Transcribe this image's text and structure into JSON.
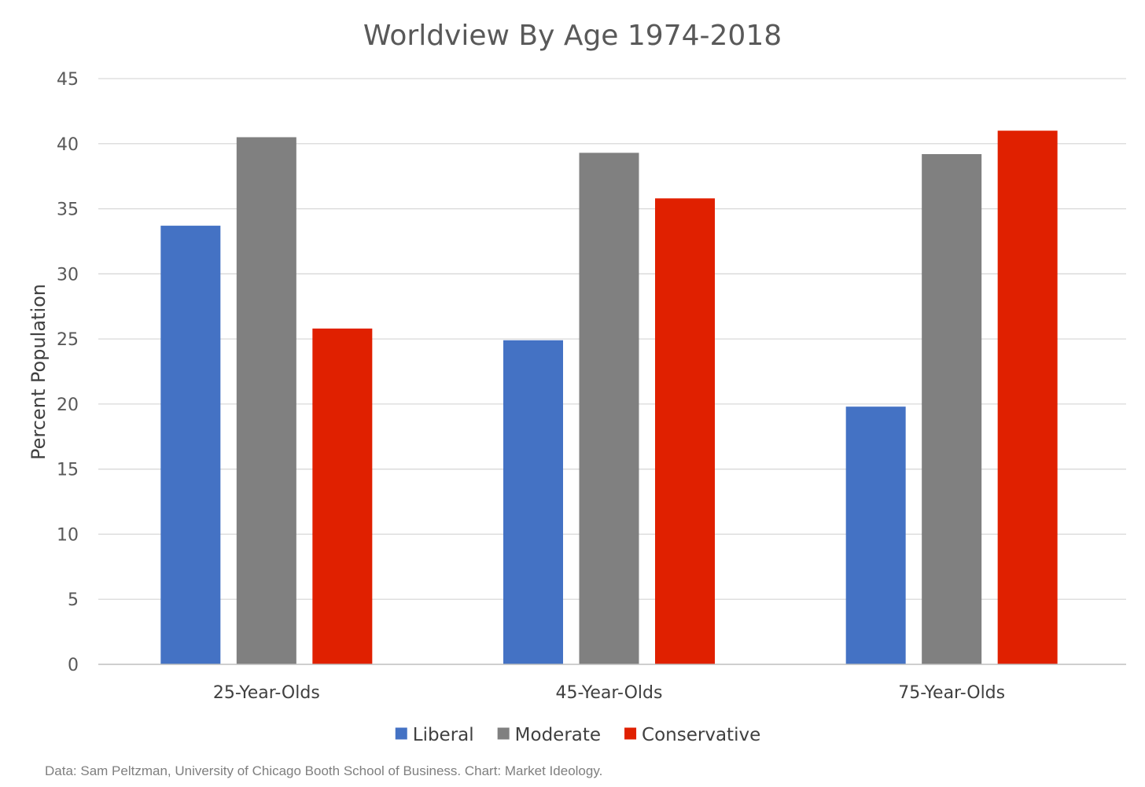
{
  "chart_data": {
    "type": "bar",
    "title": "Worldview By Age 1974-2018",
    "xlabel": "",
    "ylabel": "Percent Population",
    "ylim": [
      0,
      45
    ],
    "yticks": [
      "0",
      "5",
      "10",
      "15",
      "20",
      "25",
      "30",
      "35",
      "40",
      "45"
    ],
    "grid": true,
    "legend_position": "bottom",
    "categories": [
      "25-Year-Olds",
      "45-Year-Olds",
      "75-Year-Olds"
    ],
    "series": [
      {
        "name": "Liberal",
        "color": "#4472c4",
        "values": [
          33.7,
          24.9,
          19.8
        ]
      },
      {
        "name": "Moderate",
        "color": "#808080",
        "values": [
          40.5,
          39.3,
          39.2
        ]
      },
      {
        "name": "Conservative",
        "color": "#e02000",
        "values": [
          25.8,
          35.8,
          41.0
        ]
      }
    ],
    "source_note": "Data: Sam Peltzman, University of Chicago Booth School of Business. Chart: Market Ideology."
  }
}
